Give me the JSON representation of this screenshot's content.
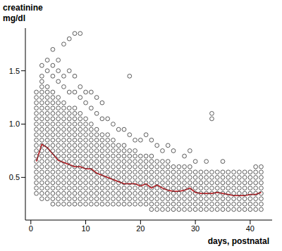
{
  "chart_data": {
    "type": "scatter",
    "ylabel": "creatinine mg/dl",
    "xlabel": "days, postnatal",
    "xlim": [
      -1,
      44
    ],
    "xticks": [
      0,
      10,
      20,
      30,
      40
    ],
    "ylim": [
      0.1,
      1.9
    ],
    "yticks": [
      0.5,
      {
        "value": 1,
        "label": "1.0"
      },
      1.5
    ],
    "grid": false,
    "series": [
      {
        "type": "scatter",
        "marker": "circle",
        "color": "#333333",
        "x": [
          1,
          2,
          3,
          4,
          5,
          6,
          7,
          8,
          9,
          10,
          11,
          12,
          13,
          14,
          15,
          16,
          17,
          18,
          19,
          20,
          21,
          22,
          23,
          24,
          25,
          26,
          27,
          28,
          29,
          30,
          31,
          32,
          33,
          34,
          35,
          36,
          37,
          38,
          39,
          40,
          41,
          42
        ],
        "values": [
          [
            0.35,
            0.4,
            0.45,
            0.5,
            0.55,
            0.6,
            0.65,
            0.7,
            0.75,
            0.8,
            0.85,
            0.9,
            0.95,
            1,
            1.05,
            1.1,
            1.15,
            1.2,
            1.25,
            1.3
          ],
          [
            0.3,
            0.35,
            0.4,
            0.45,
            0.5,
            0.55,
            0.6,
            0.65,
            0.7,
            0.75,
            0.8,
            0.85,
            0.9,
            0.95,
            1,
            1.05,
            1.1,
            1.15,
            1.2,
            1.25,
            1.3,
            1.35,
            1.4,
            1.45,
            1.55
          ],
          [
            0.3,
            0.35,
            0.4,
            0.45,
            0.5,
            0.55,
            0.6,
            0.65,
            0.7,
            0.75,
            0.8,
            0.85,
            0.9,
            0.95,
            1,
            1.05,
            1.1,
            1.15,
            1.2,
            1.25,
            1.3,
            1.35,
            1.5,
            1.6
          ],
          [
            0.25,
            0.3,
            0.35,
            0.4,
            0.45,
            0.5,
            0.55,
            0.6,
            0.65,
            0.7,
            0.75,
            0.8,
            0.85,
            0.9,
            0.95,
            1,
            1.05,
            1.1,
            1.15,
            1.2,
            1.25,
            1.3,
            1.45,
            1.55,
            1.7
          ],
          [
            0.25,
            0.3,
            0.35,
            0.4,
            0.45,
            0.5,
            0.55,
            0.6,
            0.65,
            0.7,
            0.75,
            0.8,
            0.85,
            0.9,
            0.95,
            1,
            1.05,
            1.1,
            1.15,
            1.2,
            1.25,
            1.4,
            1.5,
            1.6
          ],
          [
            0.25,
            0.3,
            0.35,
            0.4,
            0.45,
            0.5,
            0.55,
            0.6,
            0.65,
            0.7,
            0.75,
            0.8,
            0.85,
            0.9,
            0.95,
            1,
            1.05,
            1.1,
            1.15,
            1.2,
            1.35,
            1.45,
            1.75
          ],
          [
            0.25,
            0.3,
            0.35,
            0.4,
            0.45,
            0.5,
            0.55,
            0.6,
            0.65,
            0.7,
            0.75,
            0.8,
            0.85,
            0.9,
            0.95,
            1,
            1.05,
            1.1,
            1.15,
            1.3,
            1.5,
            1.8
          ],
          [
            0.25,
            0.3,
            0.35,
            0.4,
            0.45,
            0.5,
            0.55,
            0.6,
            0.65,
            0.7,
            0.75,
            0.8,
            0.85,
            0.9,
            0.95,
            1,
            1.05,
            1.1,
            1.15,
            1.3,
            1.45,
            1.85
          ],
          [
            0.25,
            0.3,
            0.35,
            0.4,
            0.45,
            0.5,
            0.55,
            0.6,
            0.65,
            0.7,
            0.75,
            0.8,
            0.85,
            0.9,
            0.95,
            1,
            1.05,
            1.1,
            1.25,
            1.35,
            1.85
          ],
          [
            0.25,
            0.3,
            0.35,
            0.4,
            0.45,
            0.5,
            0.55,
            0.6,
            0.65,
            0.7,
            0.75,
            0.8,
            0.85,
            0.9,
            0.95,
            1,
            1.05,
            1.2,
            1.3
          ],
          [
            0.25,
            0.3,
            0.35,
            0.4,
            0.45,
            0.5,
            0.55,
            0.6,
            0.65,
            0.7,
            0.75,
            0.8,
            0.85,
            0.9,
            0.95,
            1,
            1.15,
            1.3
          ],
          [
            0.25,
            0.3,
            0.35,
            0.4,
            0.45,
            0.5,
            0.55,
            0.6,
            0.65,
            0.7,
            0.75,
            0.8,
            0.85,
            0.9,
            0.95,
            1.1,
            1.25
          ],
          [
            0.25,
            0.3,
            0.35,
            0.4,
            0.45,
            0.5,
            0.55,
            0.6,
            0.65,
            0.7,
            0.75,
            0.8,
            0.85,
            0.9,
            1.05,
            1.2
          ],
          [
            0.25,
            0.3,
            0.35,
            0.4,
            0.45,
            0.5,
            0.55,
            0.6,
            0.65,
            0.7,
            0.75,
            0.8,
            0.85,
            0.9,
            1.05
          ],
          [
            0.25,
            0.3,
            0.35,
            0.4,
            0.45,
            0.5,
            0.55,
            0.6,
            0.65,
            0.7,
            0.75,
            0.8,
            0.85,
            1
          ],
          [
            0.25,
            0.3,
            0.35,
            0.4,
            0.45,
            0.5,
            0.55,
            0.6,
            0.65,
            0.7,
            0.75,
            0.8,
            0.95
          ],
          [
            0.25,
            0.3,
            0.35,
            0.4,
            0.45,
            0.5,
            0.55,
            0.6,
            0.65,
            0.7,
            0.75,
            0.8,
            0.95
          ],
          [
            0.25,
            0.3,
            0.35,
            0.4,
            0.45,
            0.5,
            0.55,
            0.6,
            0.65,
            0.7,
            0.75,
            0.9,
            1.45
          ],
          [
            0.25,
            0.3,
            0.35,
            0.4,
            0.45,
            0.5,
            0.55,
            0.6,
            0.65,
            0.7,
            0.75,
            0.85
          ],
          [
            0.25,
            0.3,
            0.35,
            0.4,
            0.45,
            0.5,
            0.55,
            0.6,
            0.65,
            0.7,
            0.85
          ],
          [
            0.25,
            0.3,
            0.35,
            0.4,
            0.45,
            0.5,
            0.55,
            0.6,
            0.65,
            0.7,
            0.9
          ],
          [
            0.2,
            0.25,
            0.3,
            0.35,
            0.4,
            0.45,
            0.5,
            0.55,
            0.6,
            0.65,
            0.7,
            0.85
          ],
          [
            0.2,
            0.25,
            0.3,
            0.35,
            0.4,
            0.45,
            0.5,
            0.55,
            0.6,
            0.65,
            0.8
          ],
          [
            0.2,
            0.25,
            0.3,
            0.35,
            0.4,
            0.45,
            0.5,
            0.55,
            0.6,
            0.65,
            0.75
          ],
          [
            0.2,
            0.25,
            0.3,
            0.35,
            0.4,
            0.45,
            0.5,
            0.55,
            0.6,
            0.65,
            0.8
          ],
          [
            0.2,
            0.25,
            0.3,
            0.35,
            0.4,
            0.45,
            0.5,
            0.55,
            0.6,
            0.75
          ],
          [
            0.2,
            0.25,
            0.3,
            0.35,
            0.4,
            0.45,
            0.5,
            0.55,
            0.6
          ],
          [
            0.2,
            0.25,
            0.3,
            0.35,
            0.4,
            0.45,
            0.5,
            0.55,
            0.6,
            0.7
          ],
          [
            0.2,
            0.25,
            0.3,
            0.35,
            0.4,
            0.45,
            0.5,
            0.55,
            0.6,
            0.75
          ],
          [
            0.2,
            0.25,
            0.3,
            0.35,
            0.4,
            0.45,
            0.5,
            0.55,
            0.65
          ],
          [
            0.2,
            0.25,
            0.3,
            0.35,
            0.4,
            0.45,
            0.5,
            0.55
          ],
          [
            0.2,
            0.25,
            0.3,
            0.35,
            0.4,
            0.45,
            0.5,
            0.55,
            0.65
          ],
          [
            0.2,
            0.25,
            0.3,
            0.35,
            0.4,
            0.45,
            0.5,
            0.55,
            1.05,
            1.1
          ],
          [
            0.2,
            0.25,
            0.3,
            0.35,
            0.4,
            0.45,
            0.5,
            0.55
          ],
          [
            0.2,
            0.25,
            0.3,
            0.35,
            0.4,
            0.45,
            0.5,
            0.55,
            0.65
          ],
          [
            0.2,
            0.25,
            0.3,
            0.35,
            0.4,
            0.45,
            0.5,
            0.55
          ],
          [
            0.2,
            0.25,
            0.3,
            0.35,
            0.4,
            0.45,
            0.5,
            0.55
          ],
          [
            0.2,
            0.25,
            0.3,
            0.35,
            0.4,
            0.45,
            0.5,
            0.55
          ],
          [
            0.2,
            0.25,
            0.3,
            0.35,
            0.4,
            0.45,
            0.5,
            0.55
          ],
          [
            0.2,
            0.25,
            0.3,
            0.35,
            0.4,
            0.45,
            0.5,
            0.55
          ],
          [
            0.2,
            0.25,
            0.3,
            0.35,
            0.4,
            0.45,
            0.5,
            0.55,
            0.6
          ],
          [
            0.2,
            0.25,
            0.3,
            0.35,
            0.4,
            0.45,
            0.5,
            0.55,
            0.6
          ]
        ]
      },
      {
        "type": "line",
        "line_style": "solid",
        "color": "#c0272d",
        "x": [
          1,
          2,
          3,
          4,
          5,
          6,
          7,
          8,
          9,
          10,
          11,
          12,
          13,
          14,
          15,
          16,
          17,
          18,
          19,
          20,
          21,
          22,
          23,
          24,
          25,
          26,
          27,
          28,
          29,
          30,
          31,
          32,
          33,
          34,
          35,
          36,
          37,
          38,
          39,
          40,
          41,
          42
        ],
        "values": [
          0.65,
          0.81,
          0.78,
          0.72,
          0.66,
          0.64,
          0.62,
          0.6,
          0.6,
          0.58,
          0.58,
          0.54,
          0.52,
          0.5,
          0.48,
          0.46,
          0.44,
          0.44,
          0.44,
          0.42,
          0.44,
          0.4,
          0.43,
          0.4,
          0.38,
          0.37,
          0.37,
          0.38,
          0.4,
          0.36,
          0.35,
          0.35,
          0.35,
          0.36,
          0.35,
          0.34,
          0.33,
          0.33,
          0.33,
          0.34,
          0.34,
          0.36
        ]
      }
    ]
  }
}
